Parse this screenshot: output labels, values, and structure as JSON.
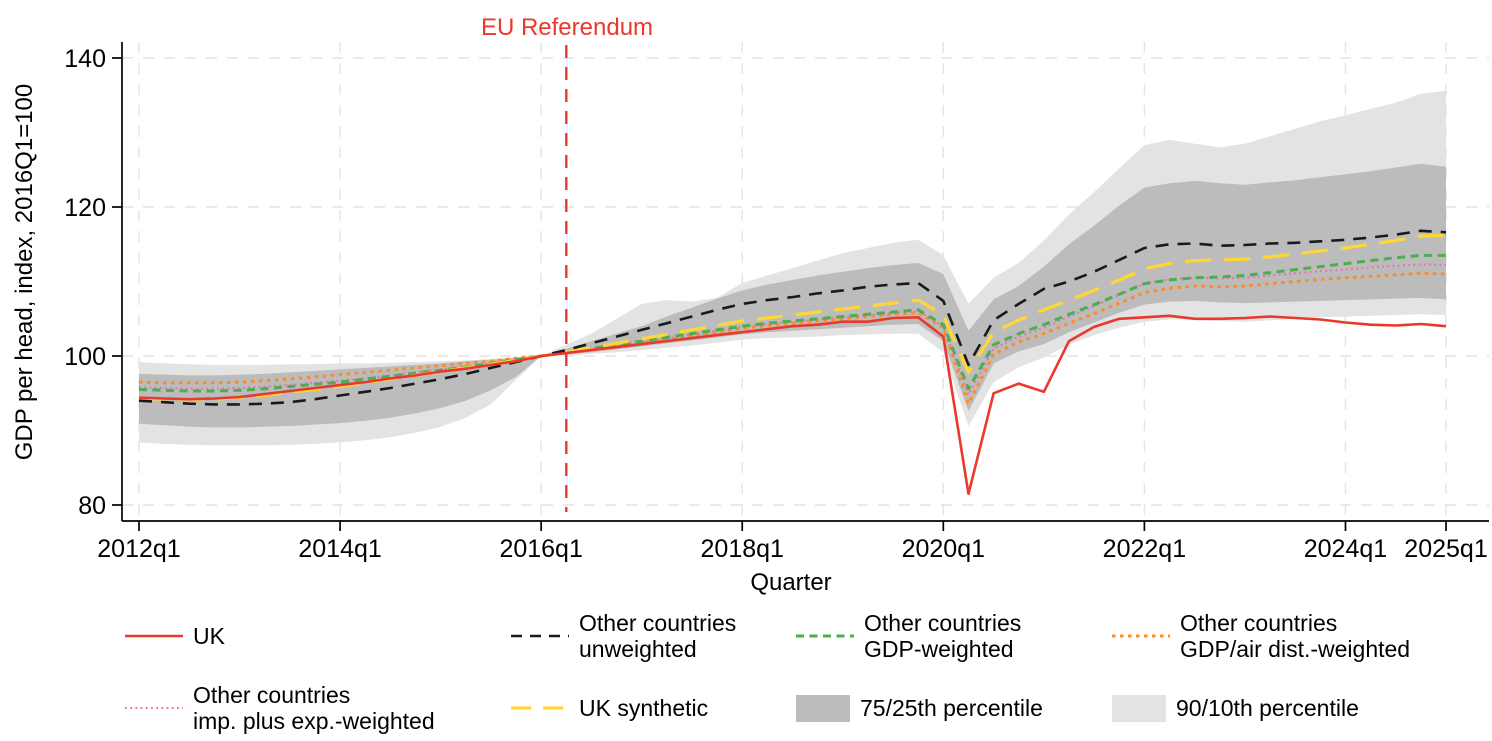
{
  "chart_data": {
    "type": "line",
    "title": "",
    "xlabel": "Quarter",
    "ylabel": "GDP per head, index, 2016Q1=100",
    "ylim": [
      78,
      141.5
    ],
    "yticks": [
      80,
      100,
      120,
      140
    ],
    "xticks": [
      {
        "index": 0,
        "label": "2012q1"
      },
      {
        "index": 8,
        "label": "2014q1"
      },
      {
        "index": 16,
        "label": "2016q1"
      },
      {
        "index": 24,
        "label": "2018q1"
      },
      {
        "index": 32,
        "label": "2020q1"
      },
      {
        "index": 40,
        "label": "2022q1"
      },
      {
        "index": 48,
        "label": "2024q1"
      },
      {
        "index": 52,
        "label": "2025q1"
      }
    ],
    "grid": "both-dashed-light-gray",
    "legend_position": "bottom",
    "quarters": [
      "2012q1",
      "2012q2",
      "2012q3",
      "2012q4",
      "2013q1",
      "2013q2",
      "2013q3",
      "2013q4",
      "2014q1",
      "2014q2",
      "2014q3",
      "2014q4",
      "2015q1",
      "2015q2",
      "2015q3",
      "2015q4",
      "2016q1",
      "2016q2",
      "2016q3",
      "2016q4",
      "2017q1",
      "2017q2",
      "2017q3",
      "2017q4",
      "2018q1",
      "2018q2",
      "2018q3",
      "2018q4",
      "2019q1",
      "2019q2",
      "2019q3",
      "2019q4",
      "2020q1",
      "2020q2",
      "2020q3",
      "2020q4",
      "2021q1",
      "2021q2",
      "2021q3",
      "2021q4",
      "2022q1",
      "2022q2",
      "2022q3",
      "2022q4",
      "2023q1",
      "2023q2",
      "2023q3",
      "2023q4",
      "2024q1",
      "2024q2",
      "2024q3",
      "2024q4",
      "2025q1"
    ],
    "reference_line": {
      "label": "EU Referendum",
      "quarter": "2016q2",
      "color": "#e8392c",
      "style": "dashed"
    },
    "bands": [
      {
        "name": "90/10th percentile",
        "color": "#e3e3e3",
        "upper": [
          99.2,
          99.0,
          98.9,
          98.8,
          98.8,
          98.8,
          98.9,
          98.9,
          99.0,
          99.0,
          99.1,
          99.2,
          99.3,
          99.4,
          99.6,
          99.8,
          100.0,
          101.5,
          103.0,
          105.0,
          107.0,
          107.5,
          107.3,
          107.8,
          109.8,
          110.8,
          111.8,
          112.8,
          113.8,
          114.5,
          115.2,
          115.6,
          113.5,
          107.0,
          110.5,
          112.5,
          115.5,
          119.0,
          122.0,
          125.2,
          128.3,
          129.0,
          128.5,
          128.0,
          128.5,
          129.5,
          130.5,
          131.5,
          132.3,
          133.2,
          134.0,
          135.2,
          135.6
        ],
        "lower": [
          88.4,
          88.2,
          88.1,
          88.0,
          88.0,
          88.0,
          88.1,
          88.2,
          88.4,
          88.7,
          89.1,
          89.7,
          90.5,
          91.7,
          93.5,
          96.8,
          100.0,
          100.1,
          100.3,
          100.5,
          100.8,
          101.1,
          101.4,
          101.8,
          102.2,
          102.4,
          102.5,
          102.6,
          102.8,
          102.9,
          103.0,
          103.0,
          100.5,
          90.6,
          96.5,
          98.5,
          99.8,
          101.5,
          102.8,
          103.8,
          104.6,
          104.9,
          104.9,
          104.7,
          104.6,
          104.8,
          105.0,
          105.2,
          105.3,
          105.4,
          105.5,
          105.6,
          105.5
        ]
      },
      {
        "name": "75/25th percentile",
        "color": "#bcbcbc",
        "upper": [
          97.6,
          97.5,
          97.4,
          97.4,
          97.5,
          97.6,
          97.8,
          98.0,
          98.2,
          98.4,
          98.6,
          98.8,
          99.0,
          99.3,
          99.5,
          99.8,
          100.0,
          101.0,
          102.0,
          103.0,
          104.0,
          105.3,
          106.5,
          107.7,
          108.8,
          109.6,
          110.2,
          110.8,
          111.3,
          111.8,
          112.2,
          112.5,
          111.0,
          103.4,
          107.6,
          109.4,
          112.0,
          115.0,
          117.5,
          120.2,
          122.6,
          123.2,
          123.5,
          123.2,
          123.0,
          123.3,
          123.6,
          124.0,
          124.4,
          124.8,
          125.3,
          125.8,
          125.4
        ],
        "lower": [
          90.9,
          90.7,
          90.5,
          90.4,
          90.4,
          90.5,
          90.6,
          90.8,
          91.0,
          91.3,
          91.7,
          92.3,
          93.0,
          94.0,
          95.4,
          97.2,
          100.0,
          100.2,
          100.5,
          100.9,
          101.3,
          101.7,
          102.1,
          102.5,
          102.9,
          103.2,
          103.4,
          103.6,
          103.8,
          104.0,
          104.2,
          104.3,
          102.0,
          92.6,
          99.0,
          100.6,
          101.6,
          103.2,
          104.5,
          105.8,
          106.9,
          107.3,
          107.4,
          107.2,
          107.1,
          107.2,
          107.3,
          107.4,
          107.5,
          107.6,
          107.7,
          107.8,
          107.6
        ]
      }
    ],
    "series": [
      {
        "name": "UK",
        "color": "#e8392c",
        "style": "solid",
        "width": 2.6,
        "values": [
          94.4,
          94.3,
          94.2,
          94.3,
          94.5,
          94.9,
          95.3,
          95.7,
          96.1,
          96.5,
          97.0,
          97.4,
          97.9,
          98.3,
          98.8,
          99.3,
          100.0,
          100.4,
          100.8,
          101.2,
          101.6,
          102.0,
          102.4,
          102.8,
          103.2,
          103.6,
          104.0,
          104.2,
          104.6,
          104.6,
          105.1,
          105.2,
          102.6,
          81.5,
          95.0,
          96.3,
          95.2,
          102.0,
          103.9,
          105.0,
          105.2,
          105.4,
          105.0,
          105.0,
          105.1,
          105.3,
          105.1,
          104.9,
          104.5,
          104.2,
          104.1,
          104.3,
          104.0
        ]
      },
      {
        "name": "Other countries unweighted",
        "color": "#1a1a1a",
        "style": "dash",
        "width": 2.6,
        "values": [
          94.0,
          93.8,
          93.6,
          93.5,
          93.5,
          93.6,
          93.8,
          94.2,
          94.7,
          95.2,
          95.7,
          96.3,
          96.9,
          97.6,
          98.4,
          99.2,
          100.0,
          100.8,
          101.7,
          102.6,
          103.5,
          104.4,
          105.3,
          106.2,
          107.0,
          107.5,
          107.9,
          108.4,
          108.8,
          109.3,
          109.6,
          109.8,
          107.4,
          98.8,
          104.8,
          107.0,
          109.0,
          110.0,
          111.3,
          112.9,
          114.5,
          115.0,
          115.1,
          114.8,
          114.9,
          115.1,
          115.2,
          115.4,
          115.6,
          115.9,
          116.3,
          116.8,
          116.6
        ]
      },
      {
        "name": "Other countries GDP-weighted",
        "color": "#4bae4f",
        "style": "shortdash",
        "width": 3,
        "values": [
          95.5,
          95.4,
          95.3,
          95.3,
          95.4,
          95.6,
          95.9,
          96.2,
          96.5,
          96.9,
          97.3,
          97.7,
          98.1,
          98.5,
          99.0,
          99.5,
          100.0,
          100.5,
          101.0,
          101.5,
          102.0,
          102.5,
          103.0,
          103.5,
          104.0,
          104.4,
          104.7,
          105.0,
          105.3,
          105.6,
          105.9,
          106.2,
          104.2,
          95.6,
          101.5,
          103.0,
          104.2,
          105.6,
          106.9,
          108.3,
          109.7,
          110.2,
          110.5,
          110.6,
          110.8,
          111.2,
          111.6,
          112.0,
          112.4,
          112.8,
          113.2,
          113.5,
          113.5
        ]
      },
      {
        "name": "Other countries GDP/air dist.-weighted",
        "color": "#ff8b24",
        "style": "dot",
        "width": 3,
        "values": [
          96.5,
          96.4,
          96.4,
          96.4,
          96.5,
          96.7,
          96.9,
          97.2,
          97.5,
          97.8,
          98.1,
          98.4,
          98.7,
          99.0,
          99.3,
          99.7,
          100.0,
          100.4,
          100.8,
          101.2,
          101.7,
          102.2,
          102.7,
          103.2,
          103.7,
          104.1,
          104.4,
          104.7,
          105.0,
          105.3,
          105.6,
          105.8,
          103.8,
          93.6,
          100.2,
          101.9,
          103.0,
          104.4,
          105.7,
          107.1,
          108.5,
          109.1,
          109.4,
          109.3,
          109.4,
          109.7,
          110.0,
          110.3,
          110.5,
          110.7,
          110.9,
          111.1,
          111.0
        ]
      },
      {
        "name": "Other countries imp. plus exp.-weighted",
        "color": "#f46ba9",
        "style": "finedot",
        "width": 2.1,
        "values": [
          95.8,
          95.7,
          95.6,
          95.6,
          95.7,
          95.9,
          96.1,
          96.4,
          96.7,
          97.0,
          97.4,
          97.8,
          98.2,
          98.6,
          99.0,
          99.5,
          100.0,
          100.4,
          100.9,
          101.4,
          101.9,
          102.4,
          102.9,
          103.4,
          103.9,
          104.3,
          104.6,
          104.9,
          105.2,
          105.5,
          105.8,
          106.0,
          104.0,
          94.8,
          101.0,
          102.6,
          103.8,
          105.3,
          106.7,
          108.2,
          109.7,
          110.3,
          110.5,
          110.4,
          110.5,
          110.8,
          111.1,
          111.4,
          111.6,
          111.9,
          112.1,
          112.3,
          112.2
        ]
      },
      {
        "name": "UK synthetic",
        "color": "#ffd735",
        "style": "longdash",
        "width": 3.2,
        "values": [
          94.3,
          94.2,
          94.2,
          94.2,
          94.4,
          94.7,
          95.1,
          95.5,
          95.9,
          96.4,
          96.9,
          97.4,
          97.9,
          98.4,
          98.9,
          99.4,
          100.0,
          100.5,
          101.1,
          101.7,
          102.3,
          102.9,
          103.5,
          104.1,
          104.7,
          105.1,
          105.5,
          105.9,
          106.3,
          106.7,
          107.1,
          107.5,
          105.5,
          97.8,
          103.2,
          104.8,
          106.2,
          107.5,
          108.8,
          110.2,
          111.7,
          112.4,
          112.8,
          112.9,
          113.0,
          113.3,
          113.7,
          114.1,
          114.5,
          115.0,
          115.5,
          116.1,
          116.2
        ]
      }
    ]
  },
  "legend": {
    "items": [
      {
        "label": "UK"
      },
      {
        "label": "Other countries\nunweighted"
      },
      {
        "label": "Other countries\nGDP-weighted"
      },
      {
        "label": "Other countries\nGDP/air dist.-weighted"
      },
      {
        "label": "Other countries\nimp. plus exp.-weighted"
      },
      {
        "label": "UK synthetic"
      },
      {
        "label": "75/25th percentile"
      },
      {
        "label": "90/10th percentile"
      }
    ]
  }
}
